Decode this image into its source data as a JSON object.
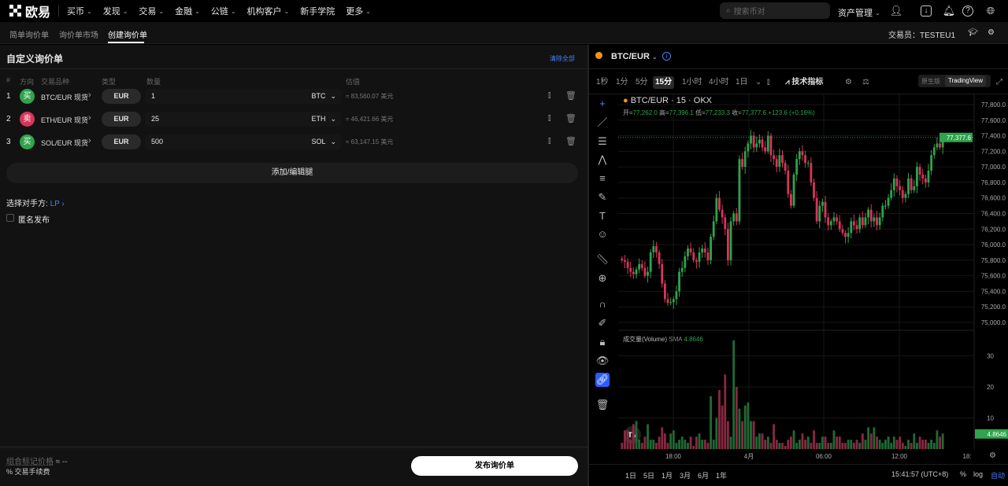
{
  "nav": {
    "logo": "欧易",
    "items": [
      "买币",
      "发现",
      "交易",
      "金融",
      "公链",
      "机构客户",
      "新手学院",
      "更多"
    ],
    "has_chevron": [
      true,
      true,
      true,
      true,
      true,
      true,
      false,
      true
    ],
    "search_placeholder": "搜索币对",
    "assets": "资产管理"
  },
  "subtabs": {
    "items": [
      "简单询价单",
      "询价单市场",
      "创建询价单"
    ],
    "active": 2,
    "trader_label": "交易员：",
    "trader": "TESTEU1"
  },
  "form": {
    "title": "自定义询价单",
    "clear_all": "清除全部",
    "columns": [
      "#",
      "方向",
      "交易品种",
      "类型",
      "数量",
      "估值"
    ],
    "legs": [
      {
        "num": "1",
        "side": "买",
        "side_color": "#2fa34d",
        "instrument": "BTC/EUR 现货",
        "type": "EUR",
        "qty": "1",
        "unit": "BTC",
        "est": "≈ 83,560.07 美元"
      },
      {
        "num": "2",
        "side": "卖",
        "side_color": "#d6365a",
        "instrument": "ETH/EUR 现货",
        "type": "EUR",
        "qty": "25",
        "unit": "ETH",
        "est": "≈ 46,421.66 美元"
      },
      {
        "num": "3",
        "side": "买",
        "side_color": "#2fa34d",
        "instrument": "SOL/EUR 现货",
        "type": "EUR",
        "qty": "500",
        "unit": "SOL",
        "est": "≈ 63,147.15 美元"
      }
    ],
    "add_leg": "添加/编辑腿",
    "counterparty_label": "选择对手方:",
    "counterparty": "LP",
    "anonymous": "匿名发布",
    "anonymous_checked": false,
    "mark_price_label": "组合标记价格",
    "mark_price_value": "≈ --",
    "fee_label": "交易手续费",
    "publish": "发布询价单"
  },
  "chart": {
    "symbol": "BTC/EUR",
    "timeframes": [
      "1秒",
      "1分",
      "5分",
      "15分",
      "1小时",
      "4小时",
      "1日"
    ],
    "active_tf": "15分",
    "indicators": "技术指标",
    "mode_native": "原生版",
    "mode_tv": "TradingView",
    "legend_title": "BTC/EUR · 15 · OKX",
    "ohlc": {
      "o_label": "开",
      "o": "77,262.0",
      "h_label": "高",
      "h": "77,396.1",
      "l_label": "低",
      "l": "77,233.3",
      "c_label": "收",
      "c": "77,377.6",
      "change": "+123.6 (+0.16%)"
    },
    "volume_label": "成交量(Volume)",
    "volume_sma": "SMA",
    "volume_value": "4.8646",
    "ranges": [
      "1日",
      "5日",
      "1月",
      "3月",
      "6月",
      "1年"
    ],
    "clock": "15:41:57 (UTC+8)",
    "pct": "%",
    "log": "log",
    "auto": "自动"
  },
  "chart_data": {
    "type": "candlestick",
    "up_color": "#2fa34d",
    "down_color": "#d6365a",
    "price_ylim": [
      75000,
      77800
    ],
    "price_ticks": [
      "77,800.0",
      "77,600.0",
      "77,400.0",
      "77,200.0",
      "77,000.0",
      "76,800.0",
      "76,600.0",
      "76,400.0",
      "76,200.0",
      "76,000.0",
      "75,800.0",
      "75,600.0",
      "75,400.0",
      "75,200.0",
      "75,000.0"
    ],
    "last_price": "77,377.6",
    "volume_ylim": [
      0,
      37
    ],
    "volume_ticks": [
      "30",
      "20",
      "10"
    ],
    "x_ticks": [
      "18:00",
      "4月",
      "06:00",
      "12:00",
      "18:"
    ],
    "closes": [
      75800,
      75780,
      75700,
      75650,
      75620,
      75680,
      75750,
      75700,
      75600,
      75650,
      75900,
      75980,
      75900,
      75750,
      75500,
      75300,
      75250,
      75260,
      75300,
      75400,
      75650,
      75700,
      75850,
      75950,
      75900,
      75800,
      75780,
      75900,
      75950,
      75900,
      75800,
      76100,
      76300,
      76600,
      76450,
      76350,
      76200,
      75800,
      76300,
      76400,
      76300,
      77100,
      77000,
      77200,
      77300,
      77400,
      77250,
      77300,
      77350,
      77250,
      77200,
      77400,
      77150,
      77100,
      77000,
      77150,
      77050,
      76950,
      76650,
      76500,
      76900,
      77100,
      77200,
      77150,
      77050,
      77050,
      76800,
      76600,
      76300,
      76500,
      76550,
      76350,
      76250,
      76300,
      76350,
      76300,
      76200,
      76150,
      76100,
      76150,
      76300,
      76250,
      76200,
      76350,
      76250,
      76350,
      76450,
      76300,
      76350,
      76250,
      76350,
      76500,
      76500,
      76600,
      76700,
      76850,
      76750,
      76700,
      76600,
      76650,
      76850,
      76700,
      76750,
      77000,
      76900,
      76850,
      76800,
      76950,
      77150,
      77250,
      77300,
      77250,
      77377.6
    ],
    "volumes": [
      2,
      6,
      6,
      3,
      8,
      9,
      3,
      2,
      4,
      8,
      3,
      3,
      2,
      4,
      7,
      5,
      2,
      5,
      6,
      2,
      3,
      4,
      3,
      2,
      4,
      1,
      4,
      5,
      3,
      3,
      2,
      17,
      3,
      10,
      19,
      14,
      24,
      9,
      4,
      35,
      20,
      13,
      9,
      14,
      15,
      9,
      9,
      4,
      5,
      5,
      3,
      4,
      2,
      8,
      3,
      2,
      2,
      1,
      3,
      4,
      6,
      2,
      3,
      5,
      3,
      4,
      2,
      6,
      2,
      2,
      4,
      4,
      2,
      2,
      6,
      4,
      4,
      2,
      2,
      3,
      3,
      2,
      3,
      2,
      5,
      3,
      7,
      5,
      7,
      4,
      3,
      2,
      3,
      4,
      2,
      4,
      3,
      4,
      2,
      1,
      3,
      2,
      5,
      2,
      4,
      3,
      3,
      2,
      3,
      2,
      6,
      4,
      5
    ]
  }
}
